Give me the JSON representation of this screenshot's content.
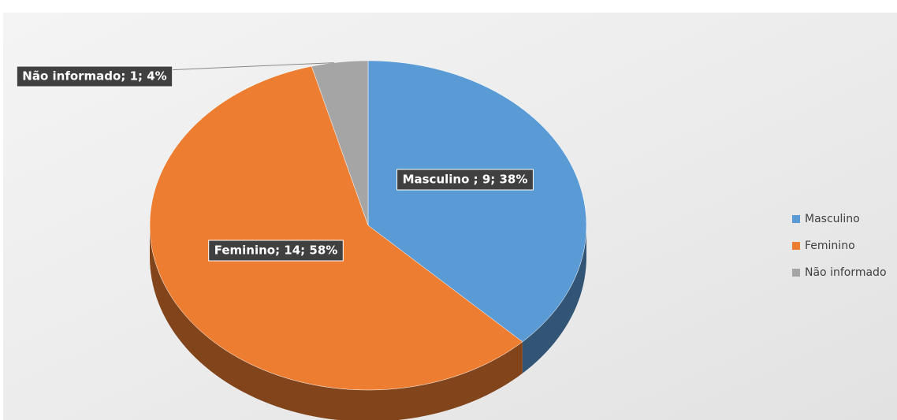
{
  "chart_data": {
    "type": "pie",
    "categories": [
      "Masculino",
      "Feminino",
      "Não informado"
    ],
    "values": [
      9,
      14,
      1
    ],
    "value_labels": [
      "Masculino ; 9; 38%",
      "Feminino; 14; 58%",
      "Não informado; 1; 4%"
    ],
    "colors": [
      "#5b9bd5",
      "#ed7d31",
      "#a5a5a5"
    ],
    "legend": "right"
  }
}
